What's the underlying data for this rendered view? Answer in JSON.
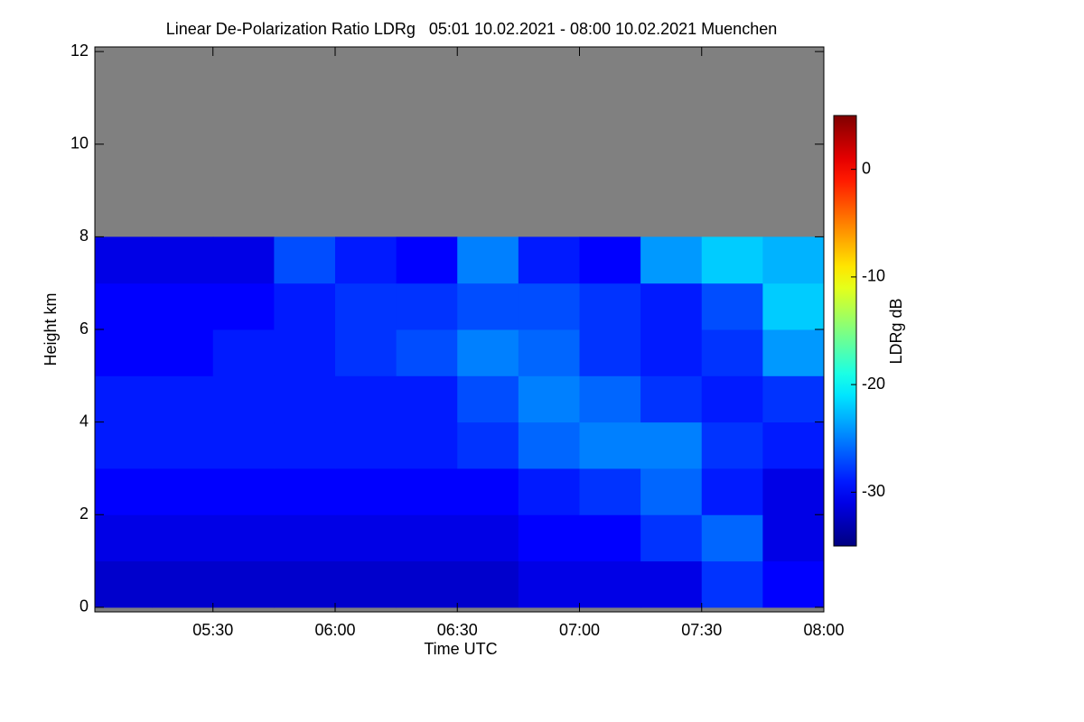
{
  "chart_data": {
    "type": "heatmap",
    "title": "Linear De-Polarization Ratio LDRg   05:01 10.02.2021 - 08:00 10.02.2021 Muenchen",
    "x_label": "Time UTC",
    "y_label": "Height km",
    "colorbar_label": "LDRg dB",
    "xlim": [
      5.0167,
      8.0
    ],
    "ylim": [
      -0.1,
      12.1
    ],
    "xticks": [
      {
        "value": 5.5,
        "label": "05:30"
      },
      {
        "value": 6,
        "label": "06:00"
      },
      {
        "value": 6.5,
        "label": "06:30"
      },
      {
        "value": 7,
        "label": "07:00"
      },
      {
        "value": 7.5,
        "label": "07:30"
      },
      {
        "value": 8,
        "label": "08:00"
      }
    ],
    "yticks": [
      0,
      2,
      4,
      6,
      8,
      10,
      12
    ],
    "xbins": [
      5.0167,
      5.25,
      5.5,
      5.75,
      6,
      6.25,
      6.5,
      6.75,
      7,
      7.25,
      7.5,
      7.75,
      8.0
    ],
    "ybins": [
      0,
      1,
      2,
      3,
      4,
      5,
      6,
      7,
      8,
      9,
      10,
      11,
      12
    ],
    "values": [
      [
        -32,
        -32,
        -32,
        -32,
        -32,
        -32,
        -32,
        -31,
        -31,
        -31,
        -28,
        -30
      ],
      [
        -31,
        -31,
        -31,
        -31,
        -31,
        -31,
        -31,
        -30,
        -30,
        -28,
        -26,
        -31
      ],
      [
        -30,
        -30,
        -30,
        -30,
        -30,
        -30,
        -30,
        -29,
        -28,
        -26,
        -29,
        -31
      ],
      [
        -29,
        -29,
        -29,
        -29,
        -29,
        -29,
        -28,
        -26,
        -25,
        -25,
        -28,
        -29
      ],
      [
        -29,
        -29,
        -29,
        -29,
        -29,
        -29,
        -27,
        -25,
        -26,
        -28,
        -29,
        -28
      ],
      [
        -30,
        -30,
        -29,
        -29,
        -28,
        -27,
        -25,
        -26,
        -28,
        -29,
        -28,
        -24
      ],
      [
        -30,
        -30,
        -30,
        -29,
        -28,
        -28,
        -27,
        -27,
        -28,
        -29,
        -27,
        -22
      ],
      [
        -31,
        -31,
        -31,
        -27,
        -29,
        -30,
        -25,
        -29,
        -30,
        -24,
        -22,
        -23
      ],
      [
        null,
        null,
        null,
        null,
        null,
        null,
        null,
        null,
        null,
        null,
        null,
        null
      ],
      [
        null,
        null,
        null,
        null,
        null,
        null,
        null,
        null,
        null,
        null,
        null,
        null
      ],
      [
        null,
        null,
        null,
        null,
        null,
        null,
        null,
        null,
        null,
        null,
        null,
        null
      ],
      [
        null,
        null,
        null,
        null,
        null,
        null,
        null,
        null,
        null,
        null,
        null,
        null
      ]
    ],
    "colormap": "jet",
    "clim": [
      -35,
      5
    ],
    "cticks": [
      0,
      -10,
      -20,
      -30
    ],
    "nan_color": "#808080"
  }
}
